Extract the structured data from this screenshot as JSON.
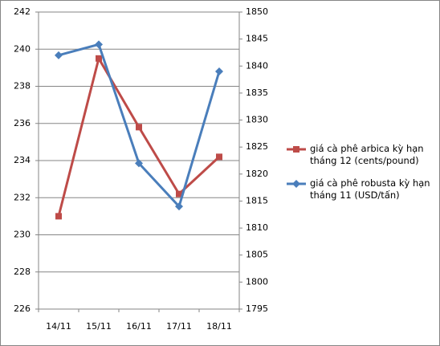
{
  "chart_data": {
    "type": "line",
    "categories": [
      "14/11",
      "15/11",
      "16/11",
      "17/11",
      "18/11"
    ],
    "series": [
      {
        "name": "giá cà phê arbica kỳ hạn tháng 12 (cents/pound)",
        "color": "#be4b48",
        "marker": "square",
        "values": [
          231.0,
          239.5,
          235.8,
          232.2,
          234.2
        ]
      },
      {
        "name": "giá cà phê robusta kỳ hạn tháng 11 (USD/tấn)",
        "color": "#4a7ebb",
        "marker": "diamond",
        "axis": "y2",
        "values": [
          1842,
          1844,
          1822,
          1814,
          1839
        ]
      }
    ],
    "ylim": [
      226,
      242
    ],
    "yticks": [
      226,
      228,
      230,
      232,
      234,
      236,
      238,
      240,
      242
    ],
    "y2lim": [
      1795,
      1850
    ],
    "y2ticks": [
      1795,
      1800,
      1805,
      1810,
      1815,
      1820,
      1825,
      1830,
      1835,
      1840,
      1845,
      1850
    ],
    "grid": true
  }
}
